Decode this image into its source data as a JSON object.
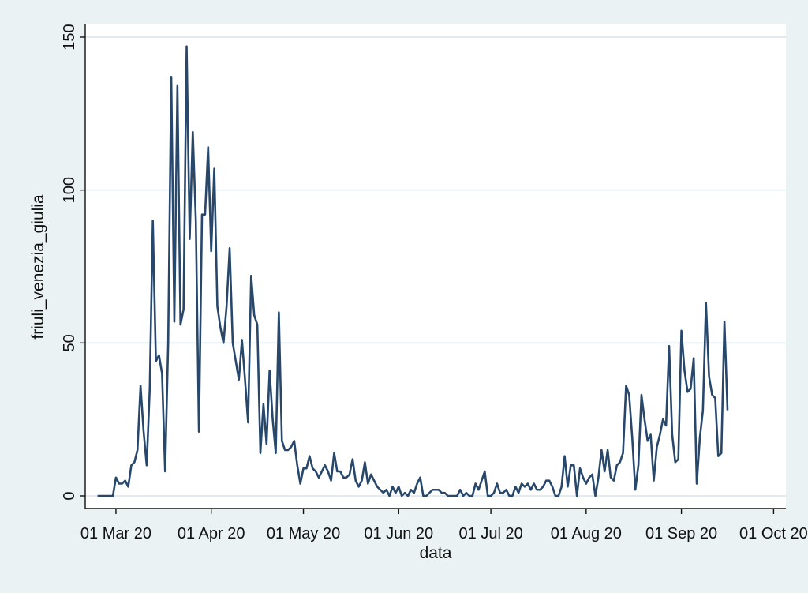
{
  "chart_data": {
    "type": "line",
    "title": "",
    "xlabel": "data",
    "ylabel": "friuli_venezia_giulia",
    "ylim": [
      0,
      150
    ],
    "xlim": [
      "2020-02-20",
      "2020-10-05"
    ],
    "yticks": [
      0,
      50,
      100,
      150
    ],
    "xticks": [
      {
        "date": "2020-03-01",
        "label": "01 Mar 20"
      },
      {
        "date": "2020-04-01",
        "label": "01 Apr 20"
      },
      {
        "date": "2020-05-01",
        "label": "01 May 20"
      },
      {
        "date": "2020-06-01",
        "label": "01 Jun 20"
      },
      {
        "date": "2020-07-01",
        "label": "01 Jul 20"
      },
      {
        "date": "2020-08-01",
        "label": "01 Aug 20"
      },
      {
        "date": "2020-09-01",
        "label": "01 Sep 20"
      },
      {
        "date": "2020-10-01",
        "label": "01 Oct 20"
      }
    ],
    "grid": true,
    "colors": {
      "line": "#27476b",
      "grid": "#d9e6ec",
      "background": "#eaf2f3",
      "plot": "#ffffff"
    },
    "series": [
      {
        "x_start": "2020-02-24",
        "values": [
          0,
          0,
          0,
          0,
          0,
          0,
          6,
          4,
          4,
          5,
          3,
          10,
          11,
          15,
          36,
          21,
          10,
          35,
          90,
          44,
          46,
          40,
          8,
          50,
          137,
          57,
          134,
          56,
          61,
          147,
          84,
          119,
          90,
          21,
          92,
          92,
          114,
          80,
          107,
          62,
          55,
          50,
          62,
          81,
          50,
          44,
          38,
          51,
          38,
          24,
          72,
          59,
          56,
          14,
          30,
          17,
          41,
          25,
          14,
          60,
          18,
          15,
          15,
          16,
          18,
          10,
          4,
          9,
          9,
          13,
          9,
          8,
          6,
          8,
          10,
          8,
          5,
          14,
          8,
          8,
          6,
          6,
          7,
          12,
          5,
          3,
          5,
          11,
          4,
          7,
          5,
          3,
          2,
          1,
          2,
          0,
          3,
          1,
          3,
          0,
          1,
          0,
          2,
          1,
          4,
          6,
          0,
          0,
          1,
          2,
          2,
          2,
          1,
          1,
          0,
          0,
          0,
          0,
          2,
          0,
          1,
          0,
          0,
          4,
          2,
          5,
          8,
          0,
          0,
          1,
          4,
          1,
          1,
          2,
          0,
          0,
          3,
          1,
          4,
          3,
          4,
          2,
          4,
          2,
          2,
          3,
          5,
          5,
          3,
          0,
          0,
          3,
          13,
          3,
          10,
          10,
          0,
          9,
          6,
          4,
          6,
          7,
          0,
          6,
          15,
          8,
          15,
          6,
          5,
          10,
          11,
          14,
          36,
          33,
          19,
          2,
          10,
          33,
          25,
          18,
          20,
          5,
          16,
          20,
          25,
          23,
          49,
          20,
          11,
          12,
          54,
          41,
          34,
          35,
          45,
          4,
          19,
          28,
          63,
          39,
          33,
          32,
          13,
          14,
          57,
          28
        ]
      }
    ]
  }
}
